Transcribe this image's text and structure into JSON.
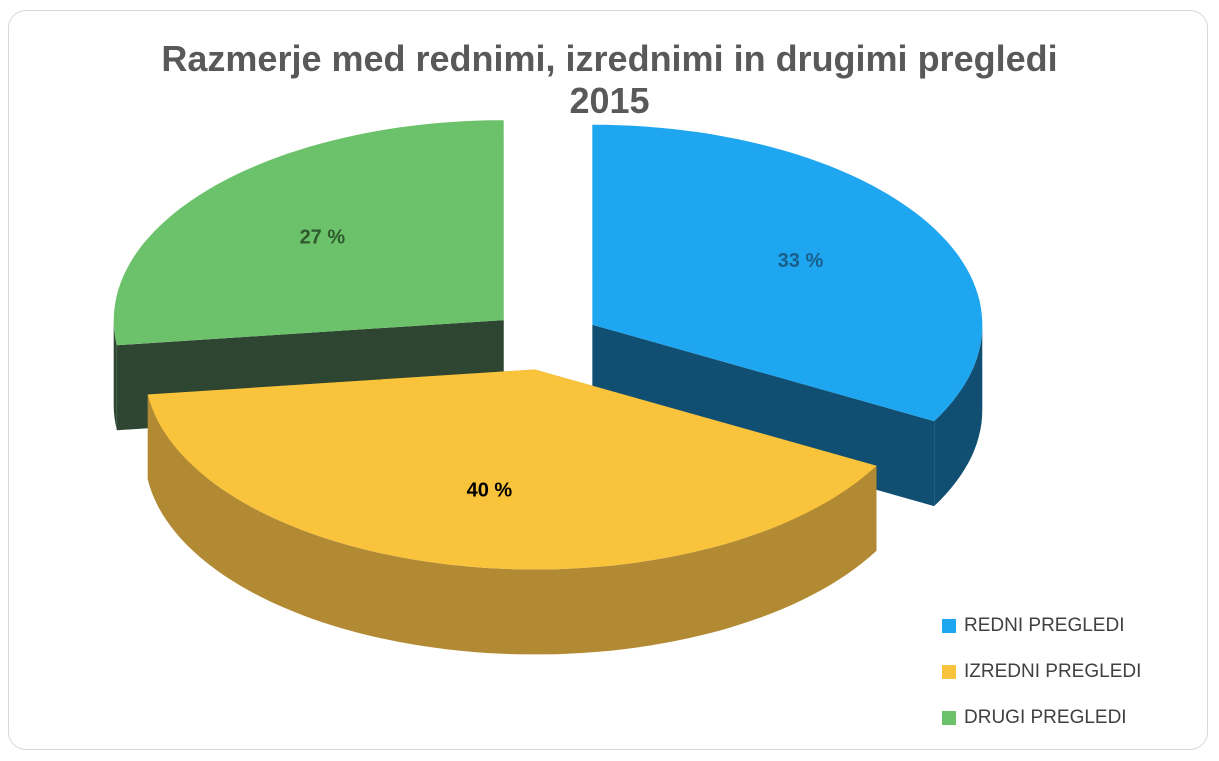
{
  "chart_data": {
    "type": "pie3d",
    "title": "Razmerje med rednimi, izrednimi in drugimi pregledi 2015",
    "categories": [
      "REDNI PREGLEDI",
      "IZREDNI PREGLEDI",
      "DRUGI PREGLEDI"
    ],
    "values": [
      33,
      40,
      27
    ],
    "value_labels": [
      "33 %",
      "40 %",
      "27 %"
    ],
    "colors": [
      "#1ea7f0",
      "#f9c33b",
      "#6cc26a"
    ],
    "side_colors": [
      "#114f72",
      "#b38a34",
      "#2e4631"
    ],
    "label_colors": [
      "#1a5f8a",
      "#000000",
      "#2e5a2e"
    ],
    "legend": "bottom-right"
  }
}
